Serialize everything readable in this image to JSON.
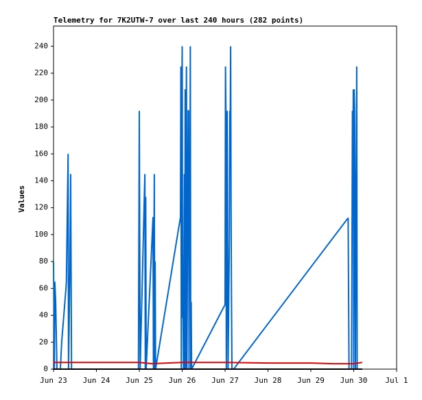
{
  "chart_data": {
    "type": "line",
    "title": "Telemetry for 7K2UTW-7 over last 240 hours (282 points)",
    "ylabel": "Values",
    "xlim": [
      0,
      8
    ],
    "ylim": [
      0,
      255
    ],
    "xticks": [
      {
        "value": 0,
        "label": "Jun 23"
      },
      {
        "value": 1,
        "label": "Jun 24"
      },
      {
        "value": 2,
        "label": "Jun 25"
      },
      {
        "value": 3,
        "label": "Jun 26"
      },
      {
        "value": 4,
        "label": "Jun 27"
      },
      {
        "value": 5,
        "label": "Jun 28"
      },
      {
        "value": 6,
        "label": "Jun 29"
      },
      {
        "value": 7,
        "label": "Jun 30"
      },
      {
        "value": 8,
        "label": "Jul 1"
      }
    ],
    "yticks": [
      0,
      20,
      40,
      60,
      80,
      100,
      120,
      140,
      160,
      180,
      200,
      220,
      240
    ],
    "series": [
      {
        "color": "#0066cc",
        "x": [
          0,
          0.02,
          0.03,
          0.05,
          0.08,
          0.16,
          0.19,
          0.29,
          0.3,
          0.34,
          0.35,
          0.38,
          0.4,
          0.42,
          1.98,
          1.99,
          2.0,
          2.02,
          2.13,
          2.14,
          2.15,
          2.16,
          2.32,
          2.33,
          2.35,
          2.36,
          2.37,
          2.38,
          2.96,
          2.97,
          2.98,
          2.99,
          3.0,
          3.01,
          3.02,
          3.03,
          3.05,
          3.06,
          3.07,
          3.08,
          3.09,
          3.1,
          3.11,
          3.14,
          3.15,
          3.16,
          3.17,
          3.18,
          3.19,
          3.2,
          3.21,
          3.22,
          4.0,
          4.01,
          4.02,
          4.03,
          4.05,
          4.06,
          4.07,
          4.1,
          4.11,
          4.12,
          4.13,
          4.14,
          4.15,
          4.16,
          4.2,
          6.86,
          6.87,
          6.88,
          6.89,
          6.95,
          6.97,
          6.98,
          6.99,
          7.0,
          7.01,
          7.02,
          7.04,
          7.05,
          7.06,
          7.07,
          7.08
        ],
        "values": [
          80,
          0,
          65,
          50,
          0,
          0,
          20,
          60,
          65,
          160,
          0,
          72,
          145,
          0,
          0,
          97,
          192,
          0,
          145,
          0,
          128,
          0,
          113,
          0,
          145,
          0,
          80,
          0,
          113,
          225,
          0,
          187,
          240,
          38,
          50,
          0,
          145,
          0,
          208,
          0,
          168,
          225,
          0,
          192,
          192,
          0,
          128,
          112,
          240,
          0,
          50,
          0,
          48,
          225,
          192,
          0,
          192,
          97,
          0,
          97,
          192,
          180,
          240,
          120,
          50,
          0,
          0,
          112,
          112,
          57,
          0,
          0,
          192,
          145,
          208,
          0,
          208,
          192,
          0,
          97,
          160,
          225,
          0
        ]
      },
      {
        "color": "#dd0000",
        "x": [
          0,
          2,
          2.3,
          3,
          4,
          5,
          6,
          6.5,
          7,
          7.2
        ],
        "values": [
          5,
          5,
          4,
          5,
          5,
          4.5,
          4.5,
          4,
          4,
          5
        ]
      },
      {
        "color": "#000000",
        "x": [
          0,
          7.2
        ],
        "values": [
          0,
          0
        ]
      }
    ]
  }
}
